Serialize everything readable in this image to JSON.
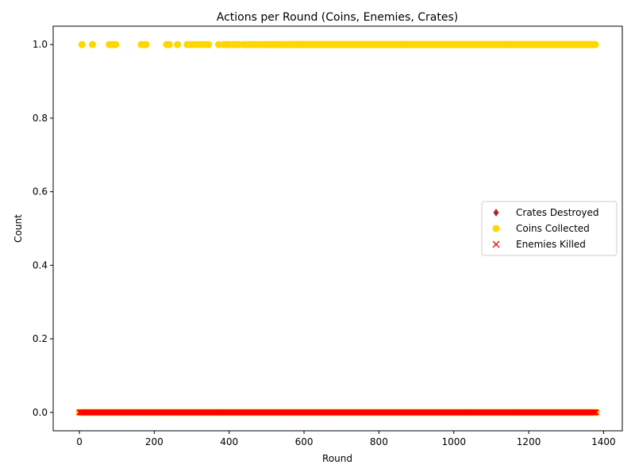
{
  "chart_data": {
    "type": "scatter",
    "title": "Actions per Round (Coins, Enemies, Crates)",
    "xlabel": "Round",
    "ylabel": "Count",
    "xlim": [
      -70,
      1450
    ],
    "ylim": [
      -0.05,
      1.05
    ],
    "xticks": [
      0,
      200,
      400,
      600,
      800,
      1000,
      1200,
      1400
    ],
    "yticks": [
      0.0,
      0.2,
      0.4,
      0.6,
      0.8,
      1.0
    ],
    "grid": false,
    "legend_position": "center-right",
    "legend": [
      {
        "name": "Crates Destroyed",
        "marker": "diamond",
        "color": "#a52a2a"
      },
      {
        "name": "Coins Collected",
        "marker": "circle",
        "color": "#ffd700"
      },
      {
        "name": "Enemies Killed",
        "marker": "x",
        "color": "#ff0000"
      }
    ],
    "series": [
      {
        "name": "Coins Collected",
        "marker": "circle",
        "color": "#ffd700",
        "rounds_with_value_1": [
          7,
          35,
          80,
          90,
          97,
          165,
          172,
          178,
          233,
          240,
          262,
          288,
          297,
          307,
          317,
          327,
          337,
          345,
          372,
          385,
          392,
          400,
          410,
          418,
          427,
          440,
          448,
          455,
          463,
          470,
          480,
          487,
          495,
          502,
          510,
          515,
          520,
          526,
          532,
          540,
          547
        ],
        "dense_value_1_from": 550,
        "dense_value_1_to": 1380,
        "value_0_range": [
          0,
          1380
        ]
      },
      {
        "name": "Enemies Killed",
        "marker": "x",
        "color": "#ff0000",
        "value_0_range": [
          0,
          1380
        ]
      },
      {
        "name": "Crates Destroyed",
        "marker": "diamond",
        "color": "#a52a2a",
        "value_0_range": [
          0,
          1380
        ]
      }
    ]
  }
}
